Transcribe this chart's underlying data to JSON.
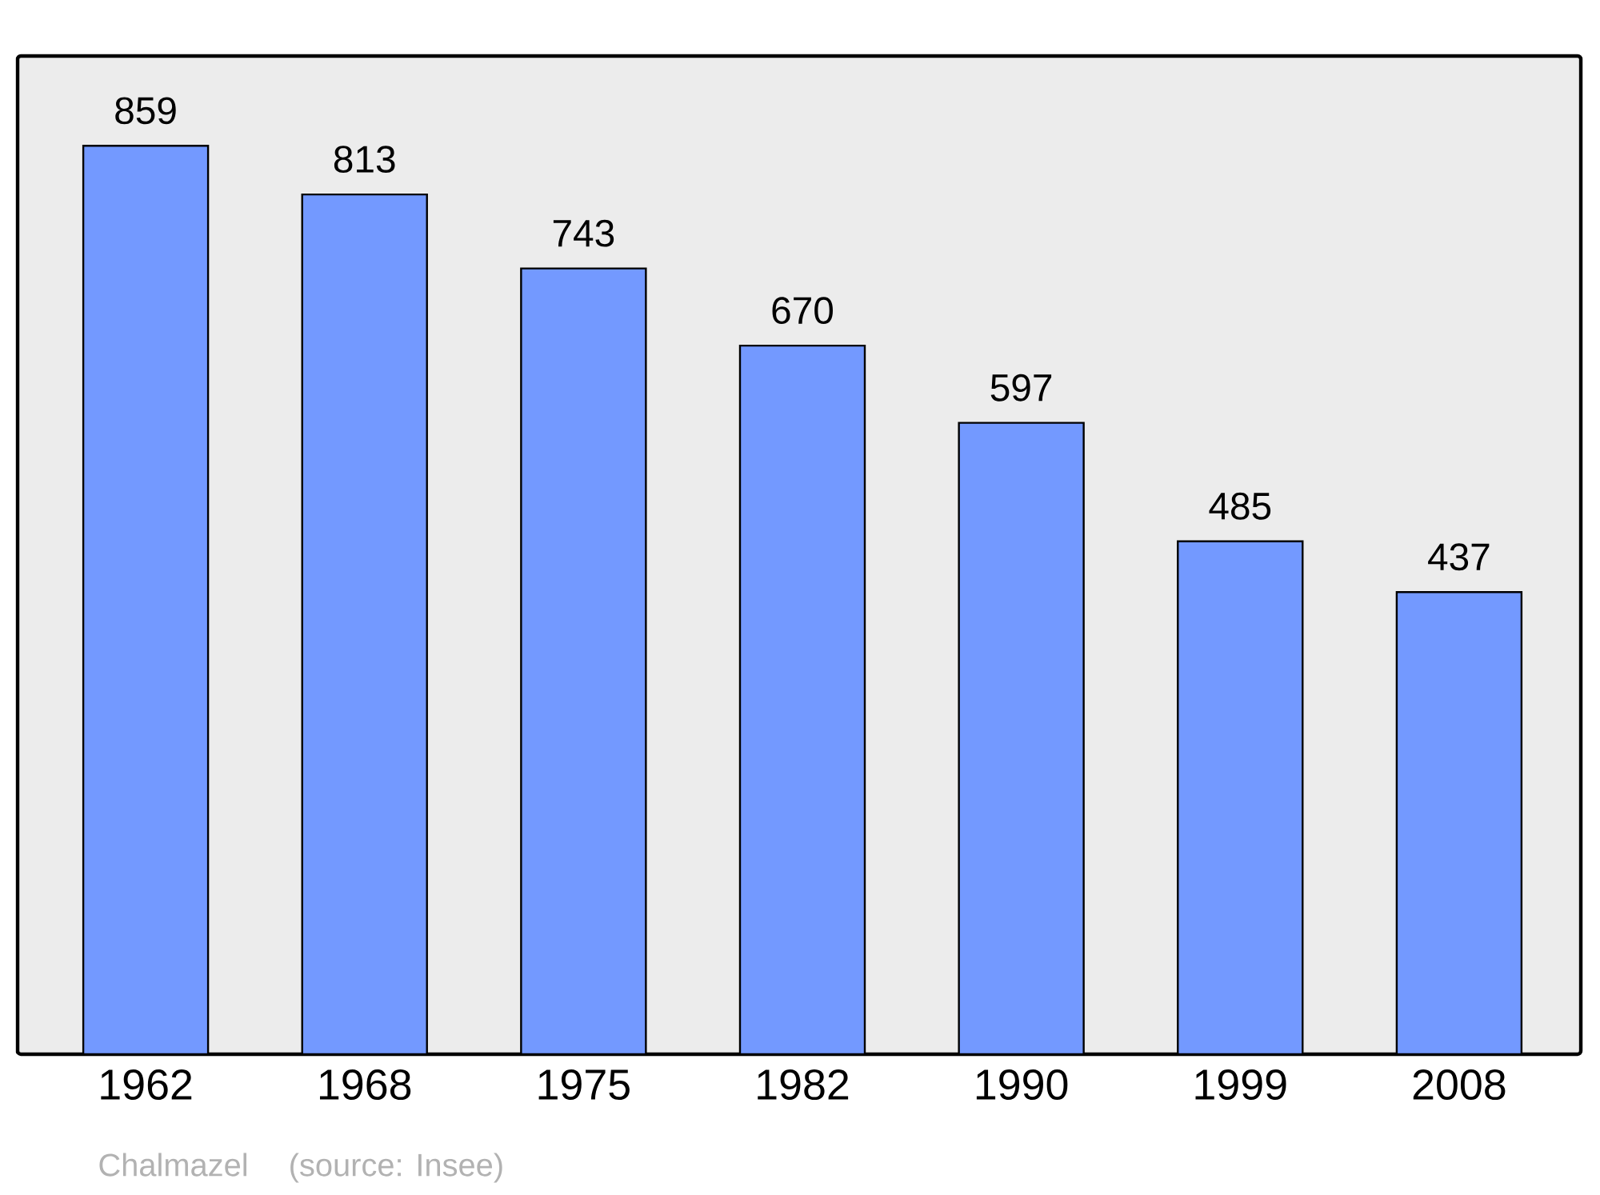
{
  "chart_data": {
    "type": "bar",
    "categories": [
      "1962",
      "1968",
      "1975",
      "1982",
      "1990",
      "1999",
      "2008"
    ],
    "values": [
      859,
      813,
      743,
      670,
      597,
      485,
      437
    ],
    "color": "#7399ff",
    "data_labels": true,
    "annotations": [
      "Chalmazel",
      "(source: Insee)"
    ]
  }
}
